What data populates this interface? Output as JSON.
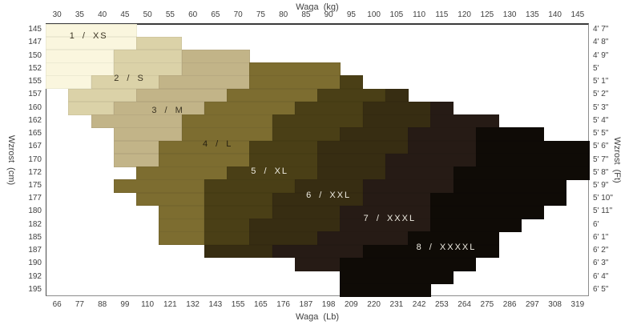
{
  "chart_data": {
    "type": "heatmap",
    "description": "Size chart mapping body height (Wzrost) and weight (Waga) to clothing sizes 1/XS through 8/XXXXL",
    "axes": {
      "top_title": "Waga  (kg)",
      "bottom_title": "Waga  (Lb)",
      "left_title": "Wzrost  (cm)",
      "right_title": "Wzrost  (Ft)",
      "x_ticks_top_kg": [
        "30",
        "35",
        "40",
        "45",
        "50",
        "55",
        "60",
        "65",
        "70",
        "75",
        "80",
        "85",
        "90",
        "95",
        "100",
        "105",
        "110",
        "115",
        "120",
        "125",
        "130",
        "135",
        "140",
        "145"
      ],
      "x_ticks_bottom_lb": [
        "66",
        "77",
        "88",
        "99",
        "110",
        "121",
        "132",
        "143",
        "155",
        "165",
        "176",
        "187",
        "198",
        "209",
        "220",
        "231",
        "242",
        "253",
        "264",
        "275",
        "286",
        "297",
        "308",
        "319"
      ],
      "y_ticks_left_cm": [
        "145",
        "147",
        "150",
        "152",
        "155",
        "157",
        "160",
        "162",
        "165",
        "167",
        "170",
        "172",
        "175",
        "177",
        "180",
        "182",
        "185",
        "187",
        "190",
        "192",
        "195"
      ],
      "y_ticks_right_ft": [
        "4' 7\"",
        "4' 8\"",
        "4' 9\"",
        "5'",
        "5' 1\"",
        "5' 2\"",
        "5' 3\"",
        "5' 4\"",
        "5' 5\"",
        "5' 6\"",
        "5' 7\"",
        "5' 8\"",
        "5' 9\"",
        "5' 10\"",
        "5' 11\"",
        "6'",
        "6' 1\"",
        "6' 2\"",
        "6' 3\"",
        "6' 4\"",
        "6' 5\""
      ],
      "grid": false,
      "x_range_kg": [
        30,
        145
      ],
      "y_range_cm": [
        145,
        195
      ]
    },
    "sizes": [
      {
        "id": 1,
        "label": "1 / XS",
        "color": "#faf6de",
        "text_color": "#3a3322",
        "label_row": 1.0,
        "label_col": 1.9
      },
      {
        "id": 2,
        "label": "2 / S",
        "color": "#dbd2a8",
        "text_color": "#3a3322",
        "label_row": 4.25,
        "label_col": 3.7
      },
      {
        "id": 3,
        "label": "3 / M",
        "color": "#c2b488",
        "text_color": "#3a3322",
        "label_row": 6.7,
        "label_col": 5.4
      },
      {
        "id": 4,
        "label": "4 / L",
        "color": "#7d6d30",
        "text_color": "#251f10",
        "label_row": 9.3,
        "label_col": 7.6
      },
      {
        "id": 5,
        "label": "5 / XL",
        "color": "#4a3f16",
        "text_color": "#efece2",
        "label_row": 11.4,
        "label_col": 9.9
      },
      {
        "id": 6,
        "label": "6 / XXL",
        "color": "#372d12",
        "text_color": "#efece2",
        "label_row": 13.25,
        "label_col": 12.5
      },
      {
        "id": 7,
        "label": "7 / XXXL",
        "color": "#261b15",
        "text_color": "#efece2",
        "label_row": 15.0,
        "label_col": 15.2
      },
      {
        "id": 8,
        "label": "8 / XXXXL",
        "color": "#0f0b06",
        "text_color": "#efece2",
        "label_row": 17.25,
        "label_col": 17.7
      }
    ],
    "regions_note": "each region = [size_id, height_row_index, weight_col_start, weight_col_end] ; rows index y_ticks_left_cm, cols index x_ticks_top_kg",
    "regions": [
      [
        1,
        0,
        0,
        3
      ],
      [
        1,
        1,
        0,
        3
      ],
      [
        2,
        1,
        4,
        5
      ],
      [
        1,
        2,
        0,
        2
      ],
      [
        2,
        2,
        3,
        5
      ],
      [
        3,
        2,
        6,
        8
      ],
      [
        1,
        3,
        0,
        2
      ],
      [
        2,
        3,
        3,
        5
      ],
      [
        3,
        3,
        6,
        8
      ],
      [
        4,
        3,
        9,
        12
      ],
      [
        1,
        4,
        0,
        1
      ],
      [
        2,
        4,
        2,
        4
      ],
      [
        3,
        4,
        5,
        8
      ],
      [
        4,
        4,
        9,
        12
      ],
      [
        5,
        4,
        13,
        13
      ],
      [
        2,
        5,
        1,
        3
      ],
      [
        3,
        5,
        4,
        7
      ],
      [
        4,
        5,
        8,
        11
      ],
      [
        5,
        5,
        12,
        14
      ],
      [
        6,
        5,
        15,
        15
      ],
      [
        2,
        6,
        1,
        2
      ],
      [
        3,
        6,
        3,
        6
      ],
      [
        4,
        6,
        7,
        10
      ],
      [
        5,
        6,
        11,
        13
      ],
      [
        6,
        6,
        14,
        16
      ],
      [
        7,
        6,
        17,
        17
      ],
      [
        3,
        7,
        2,
        5
      ],
      [
        4,
        7,
        6,
        9
      ],
      [
        5,
        7,
        10,
        13
      ],
      [
        6,
        7,
        14,
        16
      ],
      [
        7,
        7,
        17,
        19
      ],
      [
        3,
        8,
        3,
        5
      ],
      [
        4,
        8,
        6,
        9
      ],
      [
        5,
        8,
        10,
        12
      ],
      [
        6,
        8,
        13,
        15
      ],
      [
        7,
        8,
        16,
        18
      ],
      [
        8,
        8,
        19,
        21
      ],
      [
        3,
        9,
        3,
        4
      ],
      [
        4,
        9,
        5,
        8
      ],
      [
        5,
        9,
        9,
        11
      ],
      [
        6,
        9,
        12,
        15
      ],
      [
        7,
        9,
        16,
        18
      ],
      [
        8,
        9,
        19,
        23
      ],
      [
        3,
        10,
        3,
        4
      ],
      [
        4,
        10,
        5,
        8
      ],
      [
        5,
        10,
        9,
        11
      ],
      [
        6,
        10,
        12,
        14
      ],
      [
        7,
        10,
        15,
        18
      ],
      [
        8,
        10,
        19,
        23
      ],
      [
        4,
        11,
        4,
        7
      ],
      [
        5,
        11,
        8,
        11
      ],
      [
        6,
        11,
        12,
        14
      ],
      [
        7,
        11,
        15,
        17
      ],
      [
        8,
        11,
        18,
        23
      ],
      [
        4,
        12,
        3,
        6
      ],
      [
        5,
        12,
        7,
        10
      ],
      [
        6,
        12,
        11,
        13
      ],
      [
        7,
        12,
        14,
        17
      ],
      [
        8,
        12,
        18,
        22
      ],
      [
        4,
        13,
        4,
        6
      ],
      [
        5,
        13,
        7,
        9
      ],
      [
        6,
        13,
        10,
        13
      ],
      [
        7,
        13,
        14,
        16
      ],
      [
        8,
        13,
        17,
        22
      ],
      [
        4,
        14,
        5,
        6
      ],
      [
        5,
        14,
        7,
        9
      ],
      [
        6,
        14,
        10,
        12
      ],
      [
        7,
        14,
        13,
        16
      ],
      [
        8,
        14,
        17,
        21
      ],
      [
        4,
        15,
        5,
        6
      ],
      [
        5,
        15,
        7,
        8
      ],
      [
        6,
        15,
        9,
        12
      ],
      [
        7,
        15,
        13,
        16
      ],
      [
        8,
        15,
        17,
        20
      ],
      [
        4,
        16,
        5,
        6
      ],
      [
        5,
        16,
        7,
        8
      ],
      [
        6,
        16,
        9,
        11
      ],
      [
        7,
        16,
        12,
        15
      ],
      [
        8,
        16,
        16,
        19
      ],
      [
        6,
        17,
        7,
        9
      ],
      [
        7,
        17,
        10,
        13
      ],
      [
        8,
        17,
        14,
        19
      ],
      [
        7,
        18,
        11,
        12
      ],
      [
        8,
        18,
        13,
        18
      ],
      [
        8,
        19,
        13,
        17
      ],
      [
        8,
        20,
        13,
        16
      ]
    ]
  }
}
